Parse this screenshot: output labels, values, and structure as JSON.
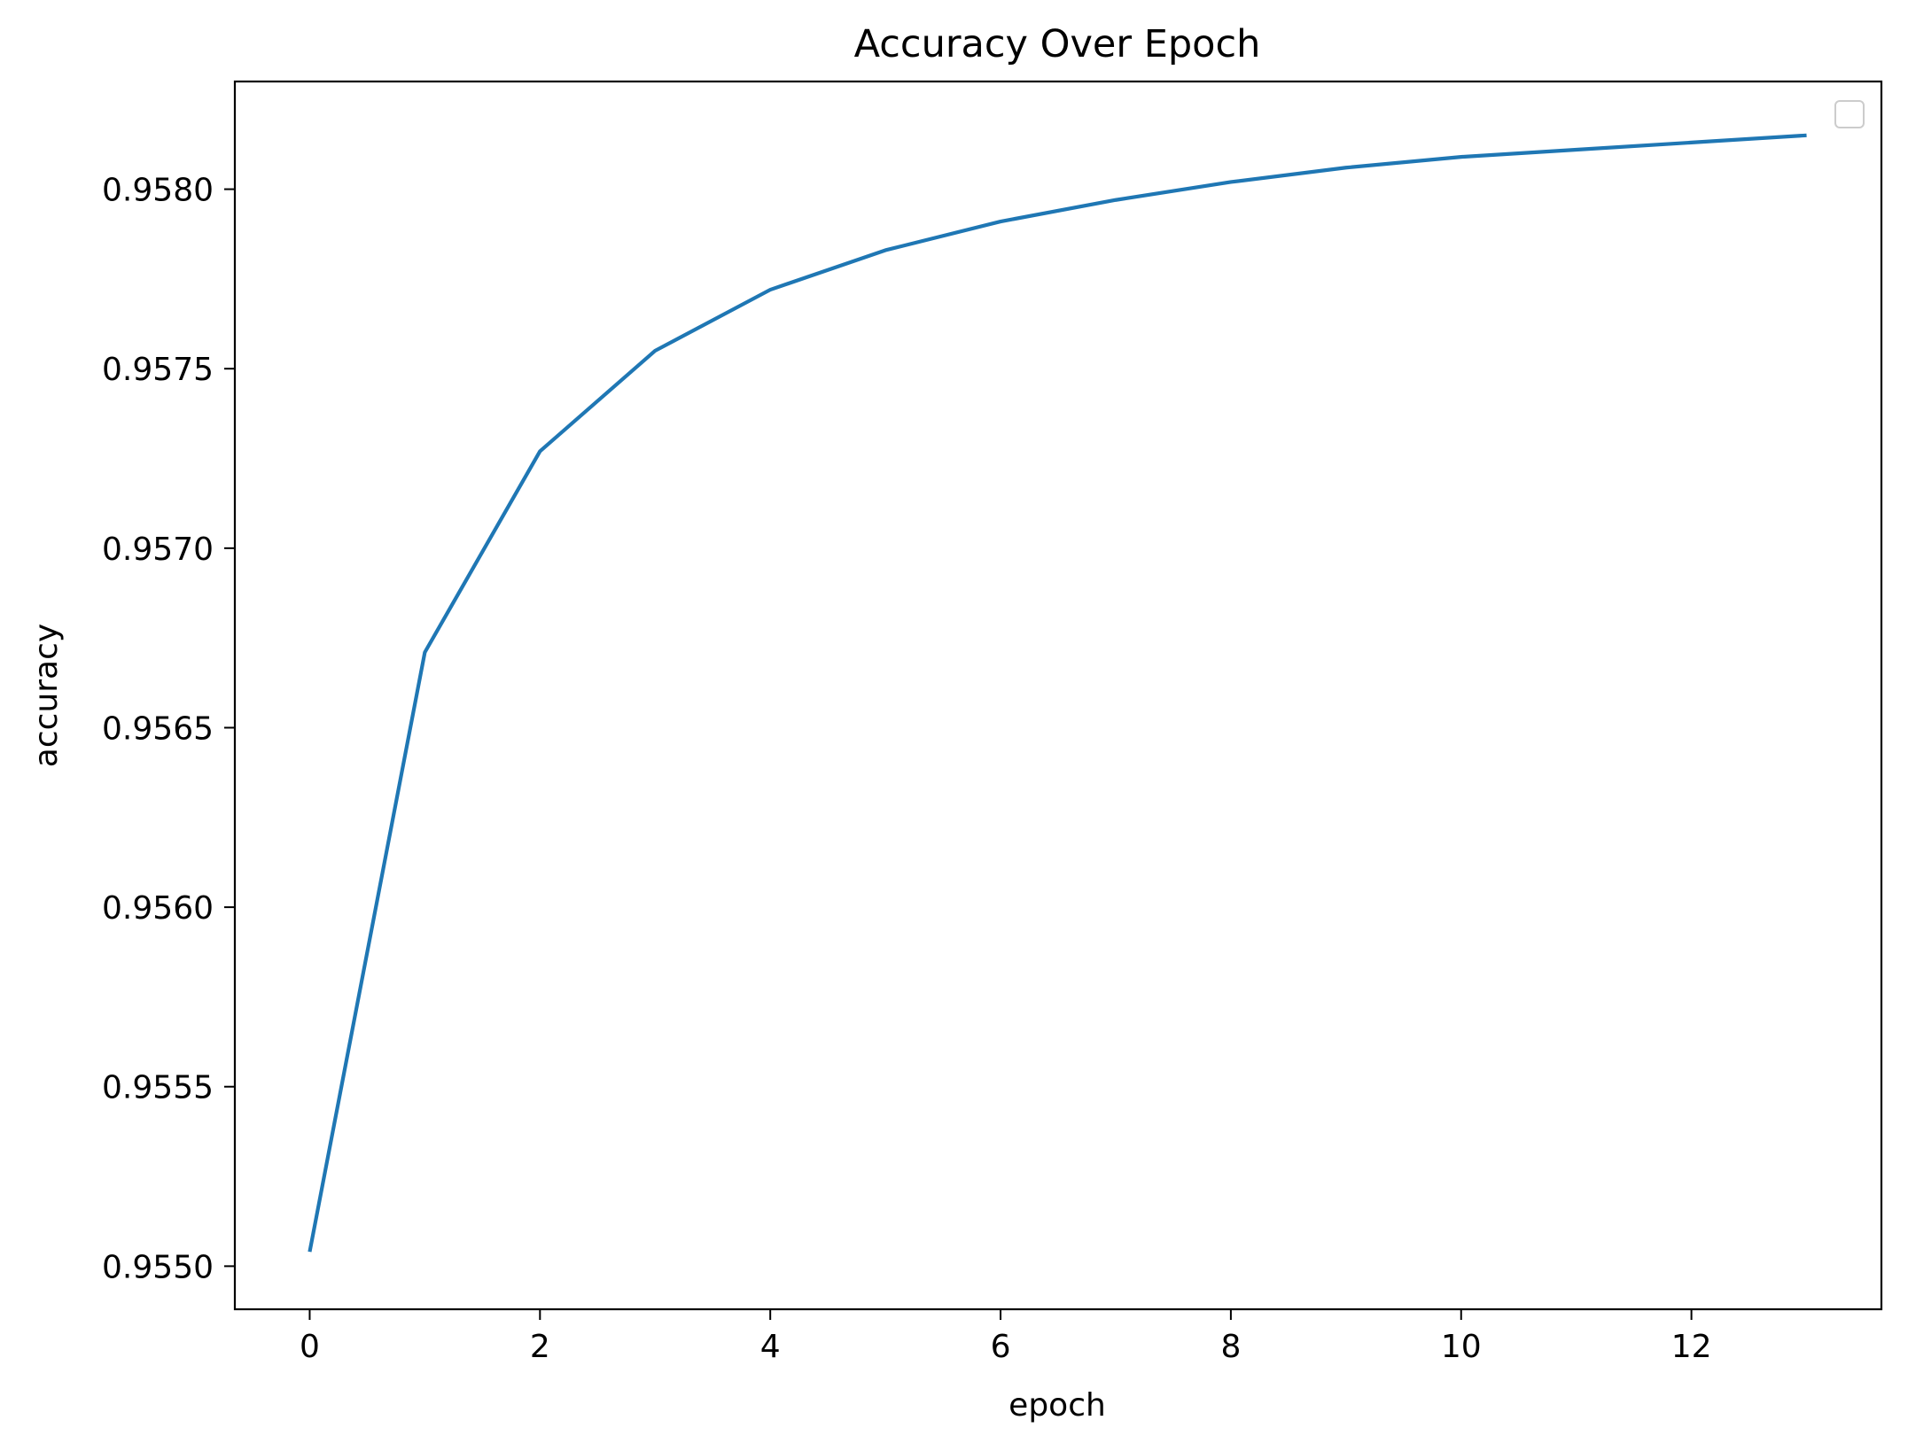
{
  "chart_data": {
    "type": "line",
    "title": "Accuracy Over Epoch",
    "xlabel": "epoch",
    "ylabel": "accuracy",
    "xlim": [
      -0.65,
      13.65
    ],
    "ylim": [
      0.95488,
      0.9583
    ],
    "xticks": [
      0,
      2,
      4,
      6,
      8,
      10,
      12
    ],
    "xtick_labels": [
      "0",
      "2",
      "4",
      "6",
      "8",
      "10",
      "12"
    ],
    "yticks": [
      0.955,
      0.9555,
      0.956,
      0.9565,
      0.957,
      0.9575,
      0.958
    ],
    "ytick_labels": [
      "0.9550",
      "0.9555",
      "0.9560",
      "0.9565",
      "0.9570",
      "0.9575",
      "0.9580"
    ],
    "grid": false,
    "legend": "top-right",
    "series": [
      {
        "color": "#1f77b4",
        "x": [
          0,
          1,
          2,
          3,
          4,
          5,
          6,
          7,
          8,
          9,
          10,
          11,
          12,
          13
        ],
        "values": [
          0.95504,
          0.95671,
          0.95727,
          0.95755,
          0.95772,
          0.95783,
          0.95791,
          0.95797,
          0.95802,
          0.95806,
          0.95809,
          0.95811,
          0.95813,
          0.95815
        ]
      }
    ]
  }
}
